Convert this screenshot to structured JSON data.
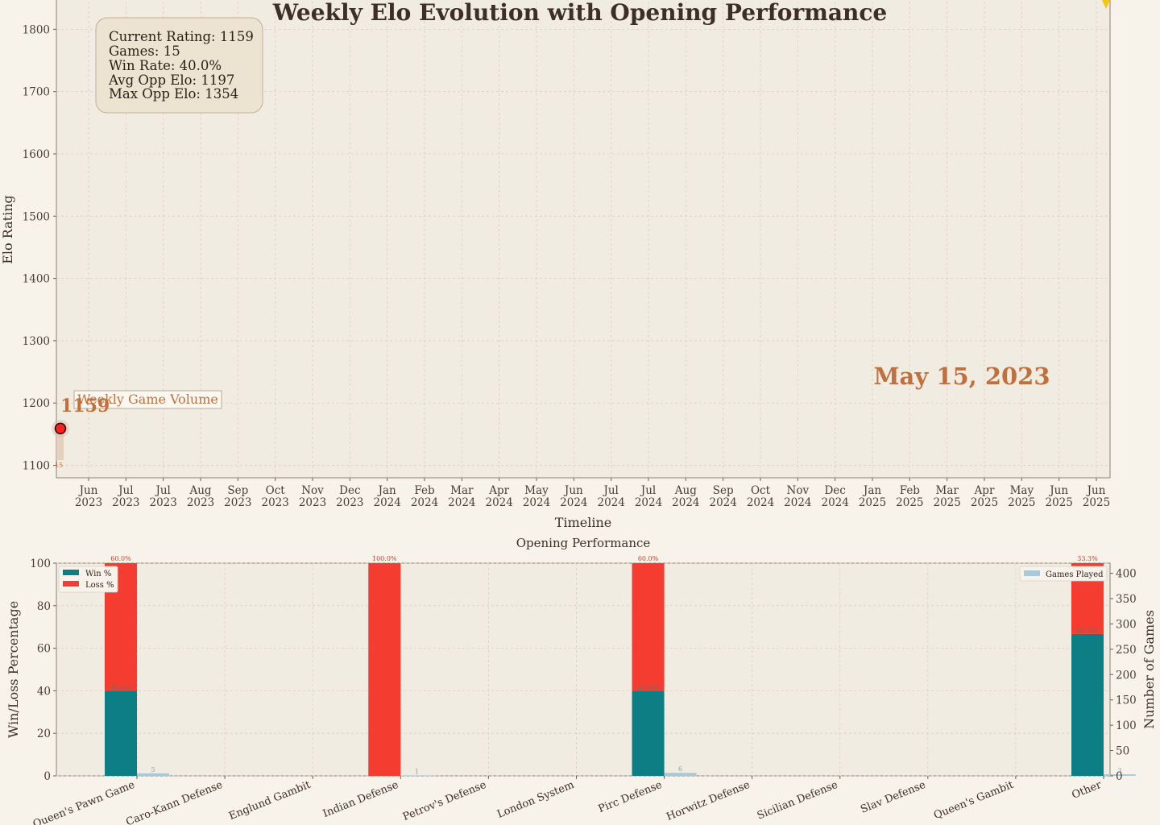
{
  "colors": {
    "win": "#0e7e85",
    "loss": "#f43c31",
    "games": "#a9c9d8",
    "accent": "#c0703e",
    "marker": "#ff1f1f",
    "stats_box": "#ede3d1"
  },
  "chart_data": [
    {
      "type": "line",
      "title": "Weekly Elo Evolution with Opening Performance",
      "xlabel": "Timeline",
      "ylabel": "Elo Rating",
      "ylim": [
        1080,
        1860
      ],
      "yticks": [
        1100,
        1200,
        1300,
        1400,
        1500,
        1600,
        1700,
        1800
      ],
      "xticks": [
        "Jun 2023",
        "Jul 2023",
        "Jul 2023",
        "Aug 2023",
        "Sep 2023",
        "Oct 2023",
        "Nov 2023",
        "Dec 2023",
        "Jan 2024",
        "Feb 2024",
        "Mar 2024",
        "Apr 2024",
        "May 2024",
        "Jun 2024",
        "Jul 2024",
        "Jul 2024",
        "Aug 2024",
        "Sep 2024",
        "Oct 2024",
        "Nov 2024",
        "Dec 2024",
        "Jan 2025",
        "Feb 2025",
        "Mar 2025",
        "Apr 2025",
        "May 2025",
        "Jun 2025",
        "Jun 2025"
      ],
      "grid": true,
      "points": [
        {
          "x": "2023-05-15",
          "y": 1159
        }
      ],
      "current_rating_label": "1159",
      "date_label": "May 15, 2023",
      "volume_label": "Weekly Game Volume",
      "volume_value": "15",
      "stats_lines": [
        "Current Rating: 1159",
        "Games: 15",
        "Win Rate: 40.0%",
        "Avg Opp Elo: 1197",
        "Max Opp Elo: 1354"
      ]
    },
    {
      "type": "bar",
      "title": "Opening Performance",
      "ylabel": "Win/Loss Percentage",
      "y2label": "Number of Games",
      "ylim": [
        0,
        100
      ],
      "y2lim": [
        0,
        420
      ],
      "yticks": [
        0,
        20,
        40,
        60,
        80,
        100
      ],
      "y2ticks": [
        0,
        50,
        100,
        150,
        200,
        250,
        300,
        350,
        400
      ],
      "grid": true,
      "categories": [
        "Queen's Pawn Game",
        "Caro-Kann Defense",
        "Englund Gambit",
        "Indian Defense",
        "Petrov's Defense",
        "London System",
        "Pirc Defense",
        "Horwitz Defense",
        "Sicilian Defense",
        "Slav Defense",
        "Queen's Gambit",
        "Other"
      ],
      "series": [
        {
          "name": "Win %",
          "values": [
            40.0,
            null,
            null,
            0,
            null,
            null,
            40.0,
            null,
            null,
            null,
            null,
            66.7
          ],
          "labels": [
            "40.0%",
            "",
            "",
            "",
            "",
            "",
            "40.0%",
            "",
            "",
            "",
            "",
            "66.7%"
          ]
        },
        {
          "name": "Loss %",
          "values": [
            60.0,
            null,
            null,
            100.0,
            null,
            null,
            60.0,
            null,
            null,
            null,
            null,
            33.3
          ],
          "labels": [
            "60.0%",
            "",
            "",
            "100.0%",
            "",
            "",
            "60.0%",
            "",
            "",
            "",
            "",
            "33.3%"
          ]
        },
        {
          "name": "Games Played",
          "values": [
            5,
            null,
            null,
            1,
            null,
            null,
            6,
            null,
            null,
            null,
            null,
            3
          ],
          "labels": [
            "5",
            "",
            "",
            "1",
            "",
            "",
            "6",
            "",
            "",
            "",
            "",
            "3"
          ]
        }
      ],
      "legend_left": [
        "Win %",
        "Loss %"
      ],
      "legend_right": [
        "Games Played"
      ]
    }
  ]
}
